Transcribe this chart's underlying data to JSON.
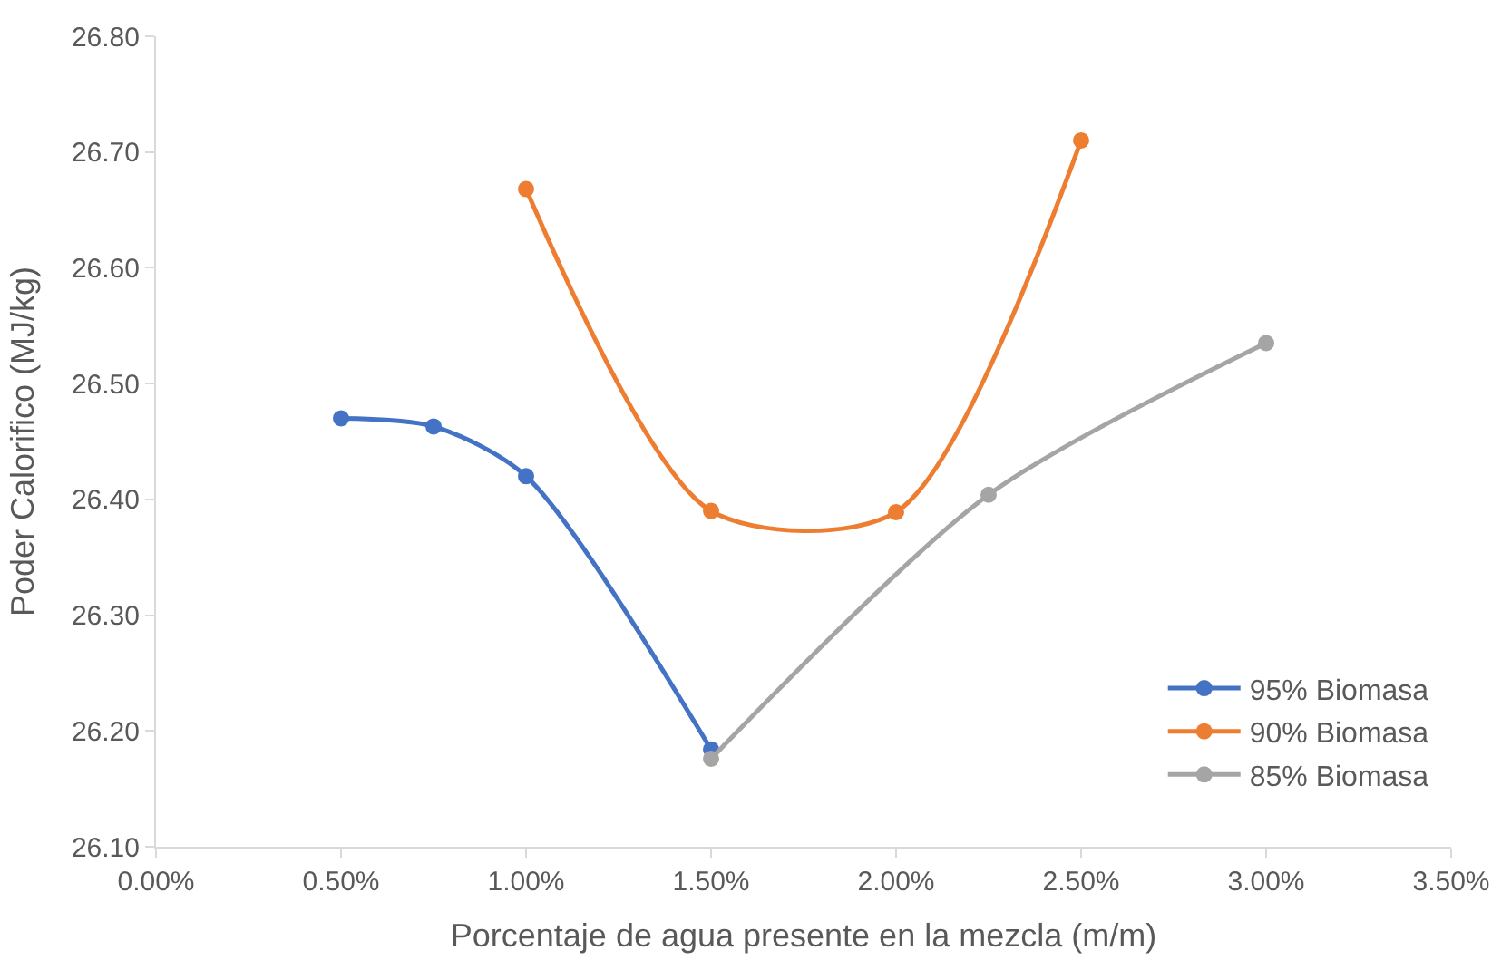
{
  "chart_data": {
    "type": "line",
    "xlabel": "Porcentaje de agua presente en la mezcla (m/m)",
    "ylabel": "Poder Calorifico (MJ/kg)",
    "xlim": [
      0,
      3.5
    ],
    "xticks": [
      {
        "value": 0,
        "label": "0.00%"
      },
      {
        "value": 0.5,
        "label": "0.50%"
      },
      {
        "value": 1,
        "label": "1.00%"
      },
      {
        "value": 1.5,
        "label": "1.50%"
      },
      {
        "value": 2,
        "label": "2.00%"
      },
      {
        "value": 2.5,
        "label": "2.50%"
      },
      {
        "value": 3,
        "label": "3.00%"
      },
      {
        "value": 3.5,
        "label": "3.50%"
      }
    ],
    "ylim": [
      26.1,
      26.8
    ],
    "yticks": [
      {
        "value": 26.1,
        "label": "26.10"
      },
      {
        "value": 26.2,
        "label": "26.20"
      },
      {
        "value": 26.3,
        "label": "26.30"
      },
      {
        "value": 26.4,
        "label": "26.40"
      },
      {
        "value": 26.5,
        "label": "26.50"
      },
      {
        "value": 26.6,
        "label": "26.60"
      },
      {
        "value": 26.7,
        "label": "26.70"
      },
      {
        "value": 26.8,
        "label": "26.80"
      }
    ],
    "series": [
      {
        "name": "95% Biomasa",
        "color": "#4472c4",
        "x": [
          0.5,
          0.75,
          1.0,
          1.5
        ],
        "values": [
          26.47,
          26.463,
          26.42,
          26.184
        ]
      },
      {
        "name": "90% Biomasa",
        "color": "#ed7d31",
        "x": [
          1.0,
          1.5,
          2.0,
          2.5
        ],
        "values": [
          26.668,
          26.39,
          26.389,
          26.71
        ]
      },
      {
        "name": "85% Biomasa",
        "color": "#a5a5a5",
        "x": [
          1.5,
          2.25,
          3.0
        ],
        "values": [
          26.176,
          26.404,
          26.535
        ]
      }
    ],
    "marker": "circle",
    "line_style": "solid",
    "legend": "bottom right"
  }
}
